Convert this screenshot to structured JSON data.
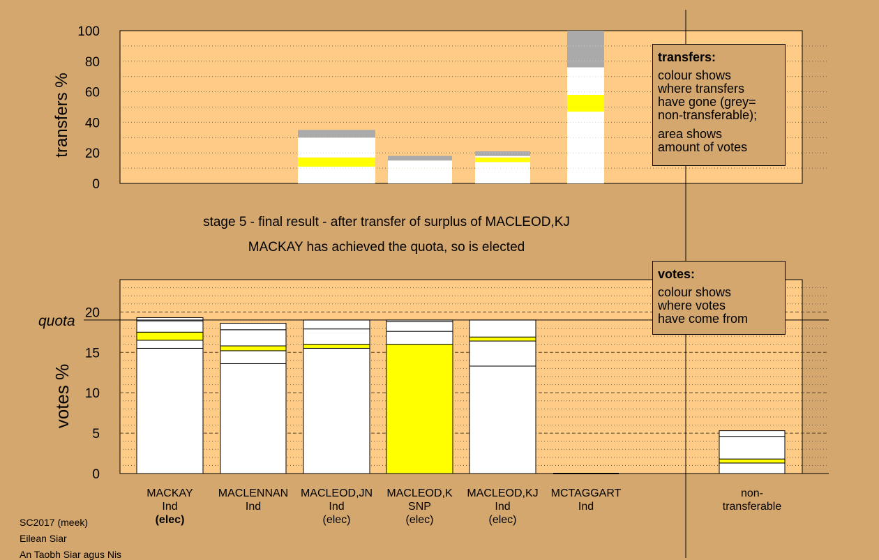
{
  "chart_data": [
    {
      "type": "bar",
      "name": "transfers",
      "ylabel": "transfers %",
      "ylim": [
        0,
        100
      ],
      "yticks": [
        0,
        20,
        40,
        60,
        80,
        100
      ],
      "grid": true,
      "bars": [
        {
          "segments": [
            {
              "value": 11,
              "color": "#ffffff"
            },
            {
              "value": 6,
              "color": "#ffff00"
            },
            {
              "value": 13,
              "color": "#ffffff"
            },
            {
              "value": 5,
              "color": "#aaaaaa"
            }
          ]
        },
        {
          "segments": [
            {
              "value": 15,
              "color": "#ffffff"
            },
            {
              "value": 3,
              "color": "#aaaaaa"
            }
          ]
        },
        {
          "segments": [
            {
              "value": 14,
              "color": "#ffffff"
            },
            {
              "value": 3,
              "color": "#ffff00"
            },
            {
              "value": 1,
              "color": "#ffffff"
            },
            {
              "value": 3,
              "color": "#aaaaaa"
            }
          ]
        },
        {
          "segments": [
            {
              "value": 47,
              "color": "#ffffff"
            },
            {
              "value": 11,
              "color": "#ffff00"
            },
            {
              "value": 18,
              "color": "#ffffff"
            },
            {
              "value": 24,
              "color": "#aaaaaa"
            }
          ]
        }
      ]
    },
    {
      "type": "bar",
      "name": "votes",
      "ylabel": "votes %",
      "ylim": [
        0,
        24
      ],
      "yticks": [
        0,
        5,
        10,
        15,
        20
      ],
      "quota": 19.0,
      "quota_label": "quota",
      "grid": true,
      "categories": [
        {
          "name": "MACKAY",
          "party": "Ind",
          "status": "(elec)",
          "status_bold": true
        },
        {
          "name": "MACLENNAN",
          "party": "Ind",
          "status": "",
          "status_bold": false
        },
        {
          "name": "MACLEOD,JN",
          "party": "Ind",
          "status": "(elec)",
          "status_bold": false
        },
        {
          "name": "MACLEOD,K",
          "party": "SNP",
          "status": "(elec)",
          "status_bold": false
        },
        {
          "name": "MACLEOD,KJ",
          "party": "Ind",
          "status": "(elec)",
          "status_bold": false
        },
        {
          "name": "MCTAGGART",
          "party": "Ind",
          "status": "",
          "status_bold": false
        }
      ],
      "bars": [
        [
          {
            "value": 15.5,
            "color": "#ffffff"
          },
          {
            "value": 1.0,
            "color": "#ffffff"
          },
          {
            "value": 1.0,
            "color": "#ffff00"
          },
          {
            "value": 1.4,
            "color": "#ffffff"
          },
          {
            "value": 0.4,
            "color": "#ffffff"
          }
        ],
        [
          {
            "value": 13.6,
            "color": "#ffffff"
          },
          {
            "value": 1.6,
            "color": "#ffffff"
          },
          {
            "value": 0.6,
            "color": "#ffff00"
          },
          {
            "value": 2.0,
            "color": "#ffffff"
          },
          {
            "value": 0.8,
            "color": "#ffffff"
          }
        ],
        [
          {
            "value": 15.5,
            "color": "#ffffff"
          },
          {
            "value": 0.5,
            "color": "#ffff00"
          },
          {
            "value": 1.9,
            "color": "#ffffff"
          },
          {
            "value": 1.1,
            "color": "#ffffff"
          }
        ],
        [
          {
            "value": 16.0,
            "color": "#ffff00"
          },
          {
            "value": 1.6,
            "color": "#ffffff"
          },
          {
            "value": 1.2,
            "color": "#ffffff"
          },
          {
            "value": 0.2,
            "color": "#ffffff"
          }
        ],
        [
          {
            "value": 13.3,
            "color": "#ffffff"
          },
          {
            "value": 3.1,
            "color": "#ffffff"
          },
          {
            "value": 0.5,
            "color": "#ffff00"
          },
          {
            "value": 2.1,
            "color": "#ffffff"
          }
        ],
        []
      ],
      "nontransferable": {
        "label": [
          "non-",
          "transferable"
        ],
        "segments": [
          {
            "value": 1.3,
            "color": "#ffffff"
          },
          {
            "value": 0.5,
            "color": "#ffff00"
          },
          {
            "value": 2.8,
            "color": "#ffffff"
          },
          {
            "value": 0.7,
            "color": "#ffffff"
          }
        ]
      }
    }
  ],
  "captions": {
    "stage": "stage 5 - final result - after transfer of surplus of MACLEOD,KJ",
    "elected": "MACKAY has achieved the quota, so is elected"
  },
  "legend_transfers": {
    "title": "transfers:",
    "line1": "colour shows",
    "line2": "where transfers",
    "line3": "have gone (grey=",
    "line4": "non-transferable);",
    "line5": "area shows",
    "line6": "amount of votes"
  },
  "legend_votes": {
    "title": "votes:",
    "line1": "colour shows",
    "line2": "where votes",
    "line3": "have come from"
  },
  "footer": {
    "line1": "SC2017 (meek)",
    "line2": "Eilean Siar",
    "line3": "An Taobh Siar agus Nis"
  },
  "colors": {
    "background": "#d4a76f",
    "plot_area": "#ffcc88",
    "transferred": "#ffff00",
    "nontransferable": "#aaaaaa"
  }
}
